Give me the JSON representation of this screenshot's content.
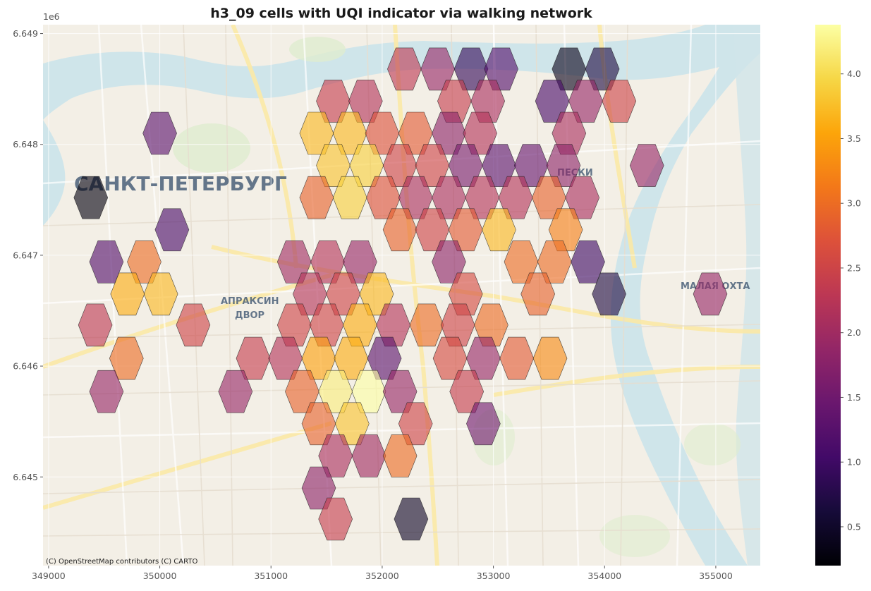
{
  "chart_data": {
    "type": "choropleth-hex-map",
    "title": "h3_09 cells with UQI indicator via walking network",
    "x_tick_labels": [
      "349000",
      "350000",
      "351000",
      "352000",
      "353000",
      "354000",
      "355000"
    ],
    "x_ticks": [
      349000,
      350000,
      351000,
      352000,
      353000,
      354000,
      355000
    ],
    "xlim": [
      348950,
      355400
    ],
    "y_tick_labels": [
      "6.645",
      "6.646",
      "6.647",
      "6.648",
      "6.649"
    ],
    "y_ticks": [
      6645000,
      6646000,
      6647000,
      6648000,
      6649000
    ],
    "y_offset_label": "1e6",
    "ylim": [
      6644200,
      6649080
    ],
    "colorbar": {
      "colormap": "inferno",
      "range": [
        0.2,
        4.38
      ],
      "tick_labels": [
        "0.5",
        "1.0",
        "1.5",
        "2.0",
        "2.5",
        "3.0",
        "3.5",
        "4.0"
      ],
      "ticks": [
        0.5,
        1.0,
        1.5,
        2.0,
        2.5,
        3.0,
        3.5,
        4.0
      ]
    },
    "basemap": {
      "attribution": "(C) OpenStreetMap contributors (C) CARTO",
      "place_labels": [
        "САНКТ-ПЕТЕРБУРГ",
        "АПРАКСИН",
        "ДВОР",
        "ПЕСКИ",
        "МАЛАЯ ОХТА"
      ]
    },
    "grid": true,
    "cells": [
      {
        "x": 352200,
        "y": 6648680,
        "v": 2.3
      },
      {
        "x": 352500,
        "y": 6648680,
        "v": 1.9
      },
      {
        "x": 352800,
        "y": 6648680,
        "v": 0.9
      },
      {
        "x": 353070,
        "y": 6648680,
        "v": 1.2
      },
      {
        "x": 353680,
        "y": 6648680,
        "v": 0.4
      },
      {
        "x": 353980,
        "y": 6648680,
        "v": 0.7
      },
      {
        "x": 351560,
        "y": 6648390,
        "v": 2.4
      },
      {
        "x": 351850,
        "y": 6648390,
        "v": 2.2
      },
      {
        "x": 352650,
        "y": 6648390,
        "v": 2.4
      },
      {
        "x": 352950,
        "y": 6648390,
        "v": 2.1
      },
      {
        "x": 353530,
        "y": 6648390,
        "v": 1.1
      },
      {
        "x": 353830,
        "y": 6648390,
        "v": 1.9
      },
      {
        "x": 354130,
        "y": 6648390,
        "v": 2.5
      },
      {
        "x": 351410,
        "y": 6648100,
        "v": 3.7
      },
      {
        "x": 351710,
        "y": 6648100,
        "v": 3.7
      },
      {
        "x": 352000,
        "y": 6648100,
        "v": 2.7
      },
      {
        "x": 352300,
        "y": 6648100,
        "v": 2.8
      },
      {
        "x": 352600,
        "y": 6648100,
        "v": 1.8
      },
      {
        "x": 352880,
        "y": 6648100,
        "v": 2.2
      },
      {
        "x": 353680,
        "y": 6648100,
        "v": 2.1
      },
      {
        "x": 350000,
        "y": 6648100,
        "v": 1.3
      },
      {
        "x": 351560,
        "y": 6647810,
        "v": 3.8
      },
      {
        "x": 351860,
        "y": 6647810,
        "v": 3.9
      },
      {
        "x": 352160,
        "y": 6647810,
        "v": 2.5
      },
      {
        "x": 352450,
        "y": 6647810,
        "v": 2.5
      },
      {
        "x": 352750,
        "y": 6647810,
        "v": 1.6
      },
      {
        "x": 353050,
        "y": 6647810,
        "v": 1.3
      },
      {
        "x": 353340,
        "y": 6647810,
        "v": 1.4
      },
      {
        "x": 353630,
        "y": 6647810,
        "v": 1.8
      },
      {
        "x": 354380,
        "y": 6647810,
        "v": 1.9
      },
      {
        "x": 349380,
        "y": 6647520,
        "v": 0.3
      },
      {
        "x": 351410,
        "y": 6647520,
        "v": 2.9
      },
      {
        "x": 351710,
        "y": 6647520,
        "v": 3.9
      },
      {
        "x": 352010,
        "y": 6647520,
        "v": 2.7
      },
      {
        "x": 352300,
        "y": 6647520,
        "v": 2.1
      },
      {
        "x": 352600,
        "y": 6647520,
        "v": 2.1
      },
      {
        "x": 352900,
        "y": 6647520,
        "v": 2.2
      },
      {
        "x": 353200,
        "y": 6647520,
        "v": 2.2
      },
      {
        "x": 353500,
        "y": 6647520,
        "v": 2.9
      },
      {
        "x": 353800,
        "y": 6647520,
        "v": 2.1
      },
      {
        "x": 350110,
        "y": 6647230,
        "v": 1.1
      },
      {
        "x": 352160,
        "y": 6647230,
        "v": 2.9
      },
      {
        "x": 352450,
        "y": 6647230,
        "v": 2.5
      },
      {
        "x": 352750,
        "y": 6647230,
        "v": 2.8
      },
      {
        "x": 353050,
        "y": 6647230,
        "v": 3.7
      },
      {
        "x": 353650,
        "y": 6647230,
        "v": 3.2
      },
      {
        "x": 349520,
        "y": 6646940,
        "v": 1.2
      },
      {
        "x": 349860,
        "y": 6646940,
        "v": 3.0
      },
      {
        "x": 351210,
        "y": 6646940,
        "v": 2.0
      },
      {
        "x": 351510,
        "y": 6646940,
        "v": 2.2
      },
      {
        "x": 351800,
        "y": 6646940,
        "v": 1.9
      },
      {
        "x": 352600,
        "y": 6646940,
        "v": 1.8
      },
      {
        "x": 353250,
        "y": 6646940,
        "v": 3.0
      },
      {
        "x": 353550,
        "y": 6646940,
        "v": 3.0
      },
      {
        "x": 353850,
        "y": 6646940,
        "v": 1.0
      },
      {
        "x": 349710,
        "y": 6646650,
        "v": 3.6
      },
      {
        "x": 350010,
        "y": 6646650,
        "v": 3.7
      },
      {
        "x": 351350,
        "y": 6646650,
        "v": 2.2
      },
      {
        "x": 351650,
        "y": 6646650,
        "v": 2.5
      },
      {
        "x": 351950,
        "y": 6646650,
        "v": 3.7
      },
      {
        "x": 352750,
        "y": 6646650,
        "v": 2.6
      },
      {
        "x": 353400,
        "y": 6646650,
        "v": 2.9
      },
      {
        "x": 354040,
        "y": 6646650,
        "v": 0.7
      },
      {
        "x": 354950,
        "y": 6646650,
        "v": 1.9
      },
      {
        "x": 349420,
        "y": 6646370,
        "v": 2.3
      },
      {
        "x": 350300,
        "y": 6646370,
        "v": 2.5
      },
      {
        "x": 351210,
        "y": 6646370,
        "v": 2.5
      },
      {
        "x": 351500,
        "y": 6646370,
        "v": 2.5
      },
      {
        "x": 351800,
        "y": 6646370,
        "v": 3.6
      },
      {
        "x": 352100,
        "y": 6646370,
        "v": 2.2
      },
      {
        "x": 352400,
        "y": 6646370,
        "v": 3.0
      },
      {
        "x": 352680,
        "y": 6646370,
        "v": 2.5
      },
      {
        "x": 352980,
        "y": 6646370,
        "v": 3.0
      },
      {
        "x": 349700,
        "y": 6646070,
        "v": 3.0
      },
      {
        "x": 350840,
        "y": 6646070,
        "v": 2.4
      },
      {
        "x": 351130,
        "y": 6646070,
        "v": 2.2
      },
      {
        "x": 351430,
        "y": 6646070,
        "v": 3.5
      },
      {
        "x": 351720,
        "y": 6646070,
        "v": 3.6
      },
      {
        "x": 352020,
        "y": 6646070,
        "v": 1.3
      },
      {
        "x": 352610,
        "y": 6646070,
        "v": 2.6
      },
      {
        "x": 352910,
        "y": 6646070,
        "v": 1.9
      },
      {
        "x": 353210,
        "y": 6646070,
        "v": 2.8
      },
      {
        "x": 353510,
        "y": 6646070,
        "v": 3.3
      },
      {
        "x": 349520,
        "y": 6645770,
        "v": 1.9
      },
      {
        "x": 350680,
        "y": 6645770,
        "v": 1.9
      },
      {
        "x": 351280,
        "y": 6645770,
        "v": 2.9
      },
      {
        "x": 351580,
        "y": 6645770,
        "v": 4.2
      },
      {
        "x": 351880,
        "y": 6645770,
        "v": 4.38
      },
      {
        "x": 352160,
        "y": 6645770,
        "v": 1.9
      },
      {
        "x": 352760,
        "y": 6645770,
        "v": 2.4
      },
      {
        "x": 351430,
        "y": 6645480,
        "v": 2.9
      },
      {
        "x": 351730,
        "y": 6645480,
        "v": 3.8
      },
      {
        "x": 352300,
        "y": 6645480,
        "v": 2.5
      },
      {
        "x": 352910,
        "y": 6645480,
        "v": 1.5
      },
      {
        "x": 351580,
        "y": 6645190,
        "v": 2.1
      },
      {
        "x": 351880,
        "y": 6645190,
        "v": 2.0
      },
      {
        "x": 352160,
        "y": 6645190,
        "v": 3.0
      },
      {
        "x": 351430,
        "y": 6644900,
        "v": 1.8
      },
      {
        "x": 351580,
        "y": 6644620,
        "v": 2.4
      },
      {
        "x": 352260,
        "y": 6644620,
        "v": 0.5
      }
    ]
  }
}
